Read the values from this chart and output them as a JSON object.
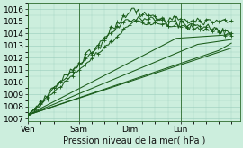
{
  "xlabel": "Pression niveau de la mer( hPa )",
  "ylim": [
    1006.8,
    1016.5
  ],
  "xlim": [
    0,
    100
  ],
  "yticks": [
    1007,
    1008,
    1009,
    1010,
    1011,
    1012,
    1013,
    1014,
    1015,
    1016
  ],
  "xtick_positions": [
    0,
    24,
    48,
    72
  ],
  "xtick_labels": [
    "Ven",
    "Sam",
    "Dim",
    "Lun"
  ],
  "bg_color": "#cceedd",
  "grid_color": "#99ccbb",
  "line_color": "#1a5c1a",
  "vline_positions": [
    0,
    24,
    48,
    72
  ]
}
